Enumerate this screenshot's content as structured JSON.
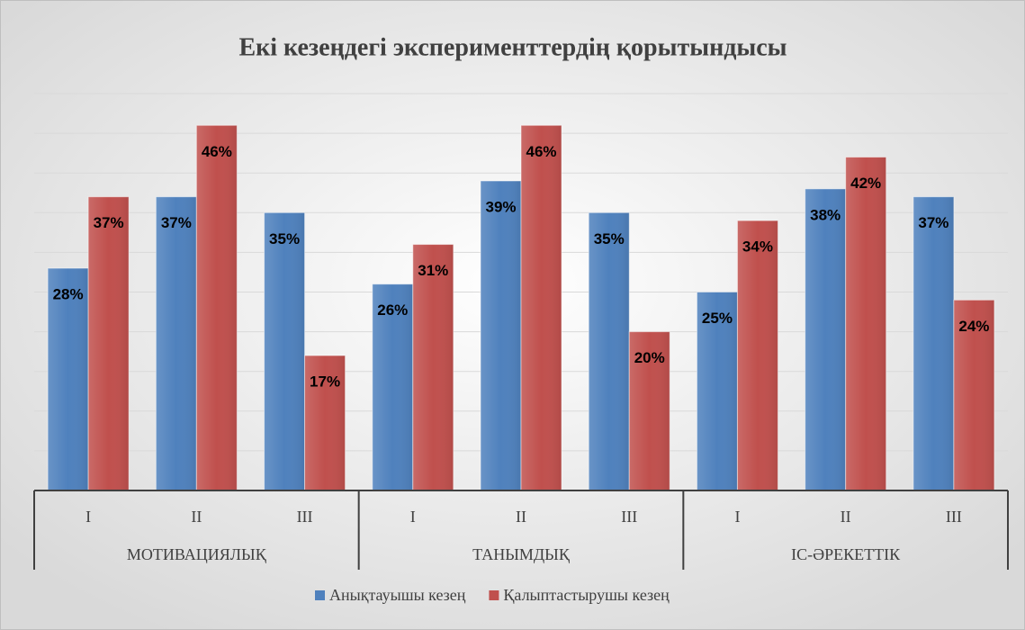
{
  "chart_data": {
    "type": "bar",
    "title": "Екі кезеңдегі эксперименттердің қорытындысы",
    "categories": [
      "I",
      "II",
      "III",
      "I",
      "II",
      "III",
      "I",
      "II",
      "III"
    ],
    "groups": [
      "МОТИВАЦИЯЛЫҚ",
      "ТАНЫМДЫҚ",
      "ІС-ӘРЕКЕТТІК"
    ],
    "series": [
      {
        "name": "Анықтауышы кезең",
        "color": "#4f81bd",
        "values": [
          28,
          37,
          35,
          26,
          39,
          35,
          25,
          38,
          37
        ],
        "value_labels": [
          "28%",
          "37%",
          "35%",
          "26%",
          "39%",
          "35%",
          "25%",
          "38%",
          "37%"
        ]
      },
      {
        "name": "Қалыптастырушы кезең",
        "color": "#c0504d",
        "values": [
          37,
          46,
          17,
          31,
          46,
          20,
          34,
          42,
          24
        ],
        "value_labels": [
          "37%",
          "46%",
          "17%",
          "31%",
          "46%",
          "20%",
          "34%",
          "42%",
          "24%"
        ]
      }
    ],
    "ylim": [
      0,
      50
    ],
    "yticks": [
      0,
      5,
      10,
      15,
      20,
      25,
      30,
      35,
      40,
      45,
      50
    ],
    "grid": true,
    "legend": "bottom"
  }
}
